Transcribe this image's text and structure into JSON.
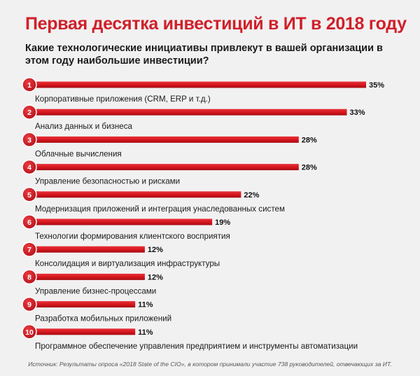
{
  "header": {
    "title": "Первая десятка инвестиций в ИТ в 2018 году",
    "question": "Какие технологические инициативы привлекут в вашей организации в этом году наибольшие инвестиции?"
  },
  "chart_data": {
    "type": "bar",
    "orientation": "horizontal",
    "title": "Первая десятка инвестиций в ИТ в 2018 году",
    "subtitle": "Какие технологические инициативы привлекут в вашей организации в этом году наибольшие инвестиции?",
    "ranks": [
      "1",
      "2",
      "3",
      "4",
      "5",
      "6",
      "7",
      "8",
      "9",
      "10"
    ],
    "categories": [
      "Корпоративные приложения (CRM, ERP и т.д.)",
      "Анализ данных и бизнеса",
      "Облачные вычисления",
      "Управление безопасностью и рисками",
      "Модернизация приложений и интеграция унаследованных систем",
      "Технологии формирования клиентского восприятия",
      "Консолидация и виртуализация инфраструктуры",
      "Управление бизнес-процессами",
      "Разработка мобильных приложений",
      "Программное обеспечение управления предприятием и инструменты автоматизации"
    ],
    "values": [
      35,
      33,
      28,
      28,
      22,
      19,
      12,
      12,
      11,
      11
    ],
    "value_labels": [
      "35%",
      "33%",
      "28%",
      "28%",
      "22%",
      "19%",
      "12%",
      "12%",
      "11%",
      "11%"
    ],
    "unit": "%",
    "xlim": [
      0,
      35
    ],
    "bar_color": "#d4141d",
    "badge_color": "#c8141c"
  },
  "footer": {
    "source": "Источник: Результаты опроса «2018 State of the CIO», в котором принимали участие 738 руководителей, отвечающих за ИТ."
  }
}
